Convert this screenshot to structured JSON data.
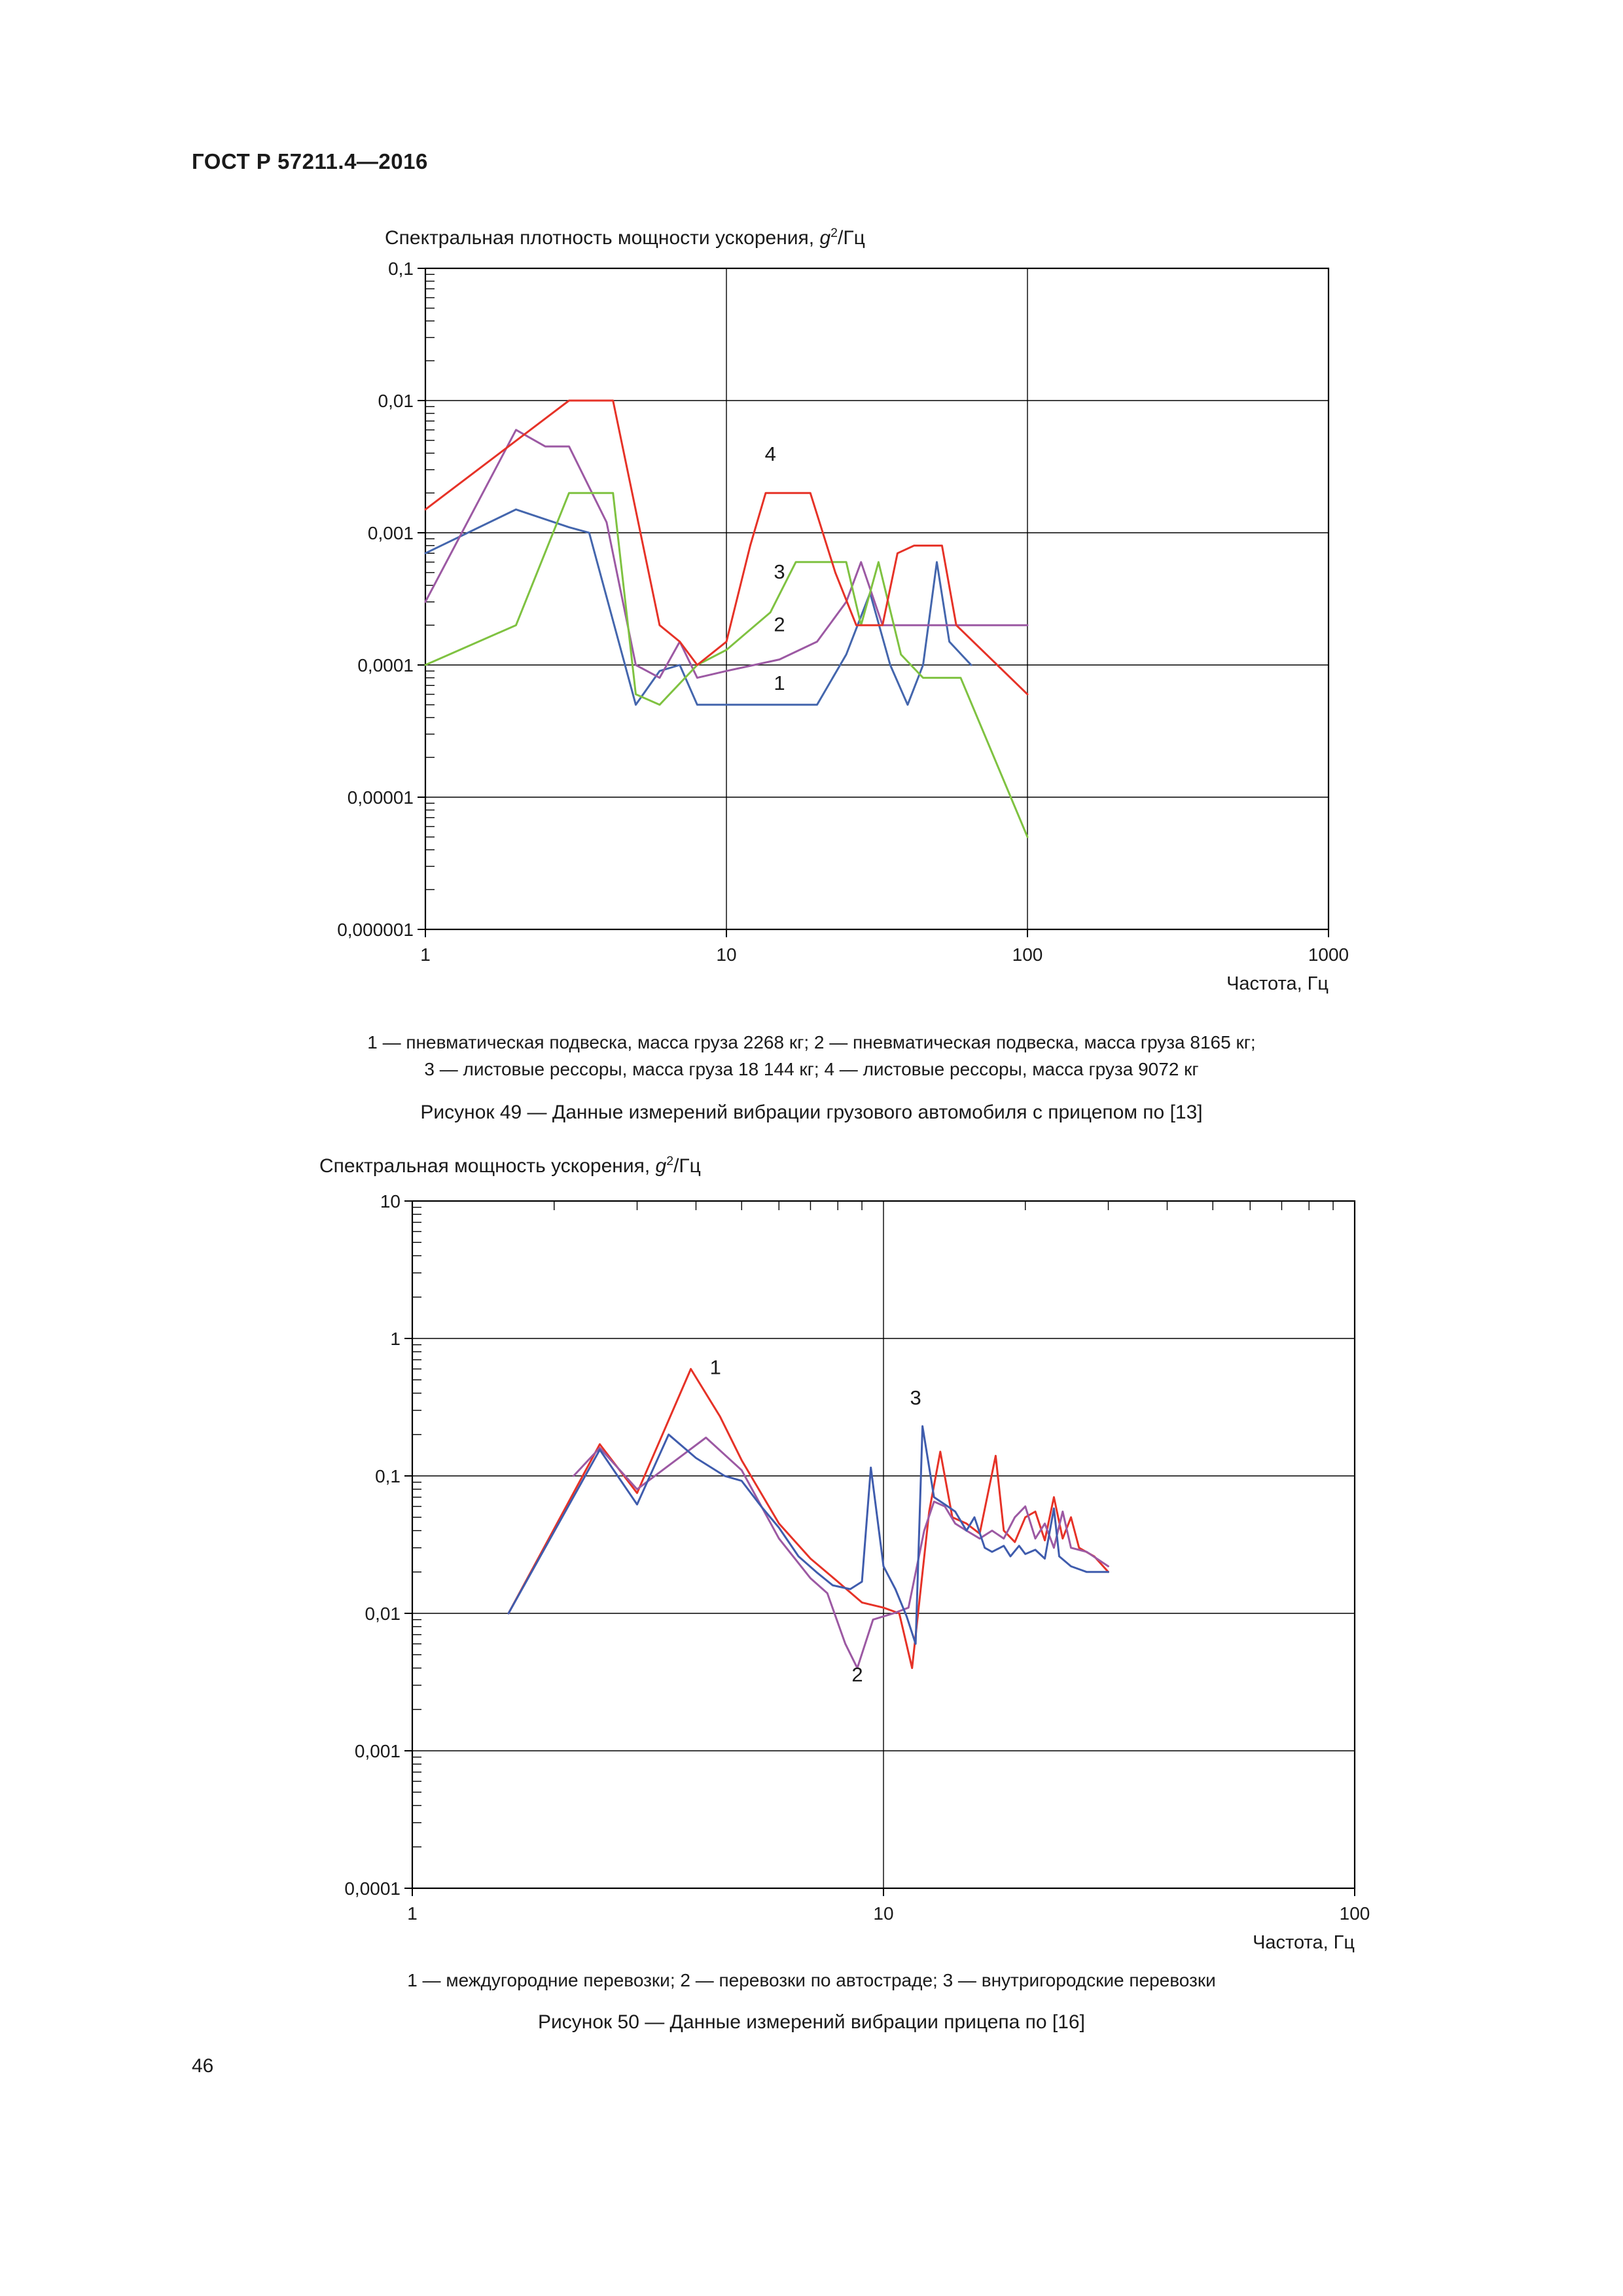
{
  "page": {
    "header": "ГОСТ Р 57211.4—2016",
    "number": "46"
  },
  "figure49": {
    "title": {
      "prefix": "Спектральная плотность мощности ускорения, ",
      "sym": "g",
      "sup": "2",
      "unit": "/Гц"
    },
    "legend_line1": "1 — пневматическая подвеска, масса груза 2268 кг; 2 — пневматическая подвеска, масса груза 8165 кг;",
    "legend_line2": "3 — листовые рессоры, масса груза 18 144 кг; 4 — листовые рессоры, масса груза 9072 кг",
    "caption": "Рисунок 49 — Данные измерений вибрации грузового автомобиля с прицепом по [13]"
  },
  "figure50": {
    "title": {
      "prefix": "Спектральная мощность ускорения, ",
      "sym": "g",
      "sup": "2",
      "unit": "/Гц"
    },
    "legend": "1 — междугородние перевозки; 2 — перевозки по автостраде; 3 — внутригородские перевозки",
    "caption": "Рисунок 50 — Данные измерений вибрации прицепа по [16]"
  },
  "chart_data": [
    {
      "id": "figure49-chart",
      "type": "line",
      "title": "Спектральная плотность мощности ускорения, g²/Гц",
      "xlabel": "Частота, Гц",
      "x_scale": "log",
      "y_scale": "log",
      "x_range": [
        1,
        1000
      ],
      "y_range": [
        1e-06,
        0.1
      ],
      "grid": true,
      "minor_ticks_top": false,
      "x_ticks": [
        {
          "v": 1,
          "label": "1"
        },
        {
          "v": 10,
          "label": "10"
        },
        {
          "v": 100,
          "label": "100"
        },
        {
          "v": 1000,
          "label": "1000"
        }
      ],
      "y_ticks": [
        {
          "v": 0.1,
          "label": "0,1"
        },
        {
          "v": 0.01,
          "label": "0,01"
        },
        {
          "v": 0.001,
          "label": "0,001"
        },
        {
          "v": 0.0001,
          "label": "0,0001"
        },
        {
          "v": 1e-05,
          "label": "0,00001"
        },
        {
          "v": 1e-06,
          "label": "0,000001"
        }
      ],
      "series": [
        {
          "key": "1",
          "name": "1 — пневматическая подвеска, масса груза 2268 кг",
          "color": "#4466ad",
          "points": [
            [
              1,
              0.0007
            ],
            [
              2,
              0.0015
            ],
            [
              3,
              0.0011
            ],
            [
              3.5,
              0.001
            ],
            [
              5,
              5e-05
            ],
            [
              6,
              9e-05
            ],
            [
              7,
              0.0001
            ],
            [
              8,
              5e-05
            ],
            [
              10,
              5e-05
            ],
            [
              20,
              5e-05
            ],
            [
              25,
              0.00012
            ],
            [
              30,
              0.00035
            ],
            [
              35,
              0.0001
            ],
            [
              40,
              5e-05
            ],
            [
              45,
              0.0001
            ],
            [
              50,
              0.0006
            ],
            [
              55,
              0.00015
            ],
            [
              65,
              0.0001
            ]
          ]
        },
        {
          "key": "2",
          "name": "2 — пневматическая подвеска, масса груза 8165 кг",
          "color": "#9c59a3",
          "points": [
            [
              1,
              0.0003
            ],
            [
              2,
              0.006
            ],
            [
              2.5,
              0.0045
            ],
            [
              3,
              0.0045
            ],
            [
              4,
              0.0012
            ],
            [
              5,
              0.0001
            ],
            [
              6,
              8e-05
            ],
            [
              7,
              0.00015
            ],
            [
              8,
              8e-05
            ],
            [
              10,
              9e-05
            ],
            [
              15,
              0.00011
            ],
            [
              20,
              0.00015
            ],
            [
              25,
              0.0003
            ],
            [
              28,
              0.0006
            ],
            [
              33,
              0.0002
            ],
            [
              40,
              0.0002
            ],
            [
              100,
              0.0002
            ]
          ]
        },
        {
          "key": "3",
          "name": "3 — листовые рессоры, масса груза 18 144 кг",
          "color": "#7fc241",
          "points": [
            [
              1,
              0.0001
            ],
            [
              2,
              0.0002
            ],
            [
              3,
              0.002
            ],
            [
              4.2,
              0.002
            ],
            [
              5,
              6e-05
            ],
            [
              6,
              5e-05
            ],
            [
              8,
              0.0001
            ],
            [
              10,
              0.00013
            ],
            [
              14,
              0.00025
            ],
            [
              17,
              0.0006
            ],
            [
              25,
              0.0006
            ],
            [
              28,
              0.0002
            ],
            [
              32,
              0.0006
            ],
            [
              38,
              0.00012
            ],
            [
              45,
              8e-05
            ],
            [
              60,
              8e-05
            ],
            [
              100,
              5e-06
            ]
          ]
        },
        {
          "key": "4",
          "name": "4 — листовые рессоры, масса груза 9072 кг",
          "color": "#e63227",
          "points": [
            [
              1,
              0.0015
            ],
            [
              3,
              0.01
            ],
            [
              4.2,
              0.01
            ],
            [
              6,
              0.0002
            ],
            [
              7,
              0.00015
            ],
            [
              8,
              0.0001
            ],
            [
              10,
              0.00015
            ],
            [
              12,
              0.0008
            ],
            [
              13.5,
              0.002
            ],
            [
              19,
              0.002
            ],
            [
              23,
              0.0005
            ],
            [
              27,
              0.0002
            ],
            [
              33,
              0.0002
            ],
            [
              37,
              0.0007
            ],
            [
              42,
              0.0008
            ],
            [
              52,
              0.0008
            ],
            [
              58,
              0.0002
            ],
            [
              100,
              6e-05
            ]
          ]
        }
      ],
      "curve_labels": [
        {
          "text": "4",
          "x": 14,
          "y": 0.0035
        },
        {
          "text": "3",
          "x": 15,
          "y": 0.00045
        },
        {
          "text": "2",
          "x": 15,
          "y": 0.00018
        },
        {
          "text": "1",
          "x": 15,
          "y": 6.5e-05
        }
      ]
    },
    {
      "id": "figure50-chart",
      "type": "line",
      "title": "Спектральная мощность ускорения, g²/Гц",
      "xlabel": "Частота, Гц",
      "x_scale": "log",
      "y_scale": "log",
      "x_range": [
        1,
        100
      ],
      "y_range": [
        0.0001,
        10
      ],
      "grid": true,
      "minor_ticks_top": true,
      "x_ticks": [
        {
          "v": 1,
          "label": "1"
        },
        {
          "v": 10,
          "label": "10"
        },
        {
          "v": 100,
          "label": "100"
        }
      ],
      "y_ticks": [
        {
          "v": 10,
          "label": "10"
        },
        {
          "v": 1,
          "label": "1"
        },
        {
          "v": 0.1,
          "label": "0,1"
        },
        {
          "v": 0.01,
          "label": "0,01"
        },
        {
          "v": 0.001,
          "label": "0,001"
        },
        {
          "v": 0.0001,
          "label": "0,0001"
        }
      ],
      "series": [
        {
          "key": "1",
          "name": "1 — междугородние перевозки",
          "color": "#e63227",
          "points": [
            [
              1.6,
              0.01
            ],
            [
              2.5,
              0.17
            ],
            [
              3,
              0.075
            ],
            [
              3.9,
              0.6
            ],
            [
              4.5,
              0.27
            ],
            [
              5,
              0.13
            ],
            [
              6,
              0.045
            ],
            [
              7,
              0.025
            ],
            [
              8,
              0.017
            ],
            [
              9,
              0.012
            ],
            [
              10,
              0.011
            ],
            [
              10.8,
              0.01
            ],
            [
              11.5,
              0.004
            ],
            [
              12.5,
              0.055
            ],
            [
              13.2,
              0.15
            ],
            [
              14,
              0.05
            ],
            [
              15,
              0.045
            ],
            [
              16,
              0.038
            ],
            [
              17.3,
              0.14
            ],
            [
              18,
              0.04
            ],
            [
              19,
              0.033
            ],
            [
              20,
              0.05
            ],
            [
              21,
              0.055
            ],
            [
              22,
              0.034
            ],
            [
              23,
              0.07
            ],
            [
              24,
              0.035
            ],
            [
              25,
              0.05
            ],
            [
              26,
              0.03
            ],
            [
              28,
              0.026
            ],
            [
              30,
              0.02
            ]
          ]
        },
        {
          "key": "2",
          "name": "2 — перевозки по автостраде",
          "color": "#9c59a3",
          "points": [
            [
              2.2,
              0.1
            ],
            [
              2.5,
              0.16
            ],
            [
              3,
              0.08
            ],
            [
              4.2,
              0.19
            ],
            [
              5,
              0.11
            ],
            [
              6,
              0.035
            ],
            [
              7,
              0.018
            ],
            [
              7.6,
              0.014
            ],
            [
              8.3,
              0.006
            ],
            [
              8.8,
              0.004
            ],
            [
              9.5,
              0.009
            ],
            [
              10.5,
              0.01
            ],
            [
              11.3,
              0.011
            ],
            [
              12.2,
              0.04
            ],
            [
              12.8,
              0.065
            ],
            [
              13.5,
              0.06
            ],
            [
              14.2,
              0.045
            ],
            [
              15,
              0.04
            ],
            [
              16,
              0.035
            ],
            [
              17,
              0.04
            ],
            [
              18,
              0.035
            ],
            [
              19,
              0.05
            ],
            [
              20,
              0.06
            ],
            [
              21,
              0.035
            ],
            [
              22,
              0.045
            ],
            [
              23,
              0.03
            ],
            [
              24,
              0.055
            ],
            [
              25,
              0.03
            ],
            [
              27,
              0.028
            ],
            [
              30,
              0.022
            ]
          ]
        },
        {
          "key": "3",
          "name": "3 — внутригородские перевозки",
          "color": "#3f5cad",
          "points": [
            [
              1.6,
              0.01
            ],
            [
              2.5,
              0.155
            ],
            [
              3,
              0.062
            ],
            [
              3.5,
              0.2
            ],
            [
              4,
              0.135
            ],
            [
              4.6,
              0.1
            ],
            [
              5,
              0.092
            ],
            [
              5.5,
              0.06
            ],
            [
              6,
              0.042
            ],
            [
              6.6,
              0.026
            ],
            [
              7.2,
              0.02
            ],
            [
              7.8,
              0.016
            ],
            [
              8.5,
              0.015
            ],
            [
              9,
              0.017
            ],
            [
              9.4,
              0.115
            ],
            [
              10,
              0.022
            ],
            [
              10.6,
              0.015
            ],
            [
              11.2,
              0.0095
            ],
            [
              11.7,
              0.006
            ],
            [
              12.1,
              0.23
            ],
            [
              12.8,
              0.07
            ],
            [
              13.5,
              0.062
            ],
            [
              14.2,
              0.055
            ],
            [
              15,
              0.04
            ],
            [
              15.6,
              0.05
            ],
            [
              16.4,
              0.03
            ],
            [
              17,
              0.028
            ],
            [
              18,
              0.031
            ],
            [
              18.6,
              0.026
            ],
            [
              19.4,
              0.031
            ],
            [
              20,
              0.027
            ],
            [
              21,
              0.029
            ],
            [
              22,
              0.025
            ],
            [
              23,
              0.058
            ],
            [
              23.6,
              0.026
            ],
            [
              25,
              0.022
            ],
            [
              27,
              0.02
            ],
            [
              30,
              0.02
            ]
          ]
        }
      ],
      "curve_labels": [
        {
          "text": "1",
          "x": 4.4,
          "y": 0.55
        },
        {
          "text": "3",
          "x": 11.7,
          "y": 0.33
        },
        {
          "text": "2",
          "x": 8.8,
          "y": 0.0032
        }
      ]
    }
  ]
}
